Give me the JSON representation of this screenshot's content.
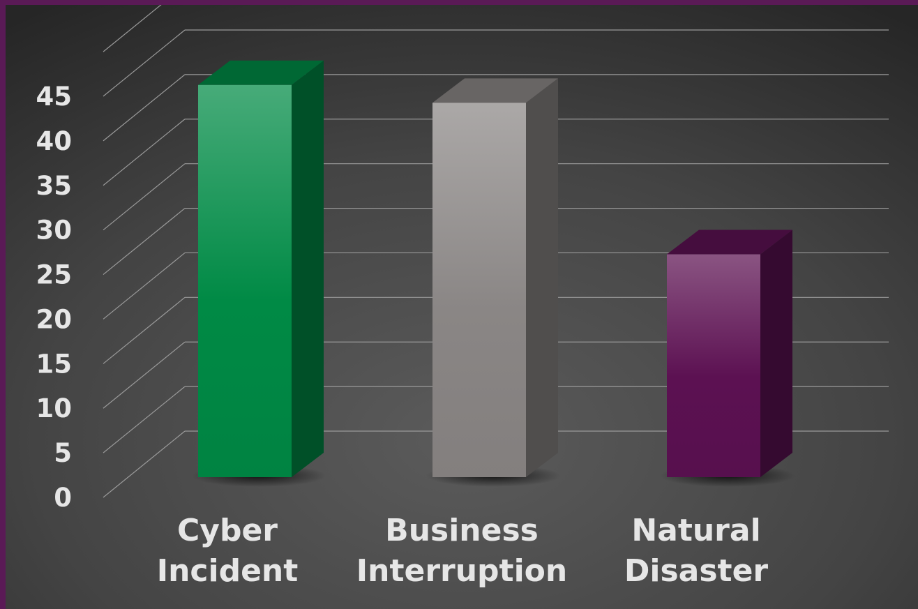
{
  "chart_data": {
    "type": "bar",
    "style": "3d-column",
    "title": "",
    "xlabel": "",
    "ylabel": "",
    "categories": [
      [
        "Cyber",
        "Incident"
      ],
      [
        "Business",
        "Interruption"
      ],
      [
        "Natural",
        "Disaster"
      ]
    ],
    "values": [
      44,
      42,
      25
    ],
    "ylim": [
      0,
      45
    ],
    "yticks": [
      0,
      5,
      10,
      15,
      20,
      25,
      30,
      35,
      40,
      45
    ],
    "grid": true,
    "legend": "none"
  },
  "colors": {
    "background_top": "#2b2b2b",
    "background_center": "#5a5a5a",
    "frame": "#5a1a56",
    "gridline": "#9a9a9a",
    "text": "#e6e6e6",
    "bars": [
      "#008a45",
      "#8a8685",
      "#5c1152"
    ]
  }
}
